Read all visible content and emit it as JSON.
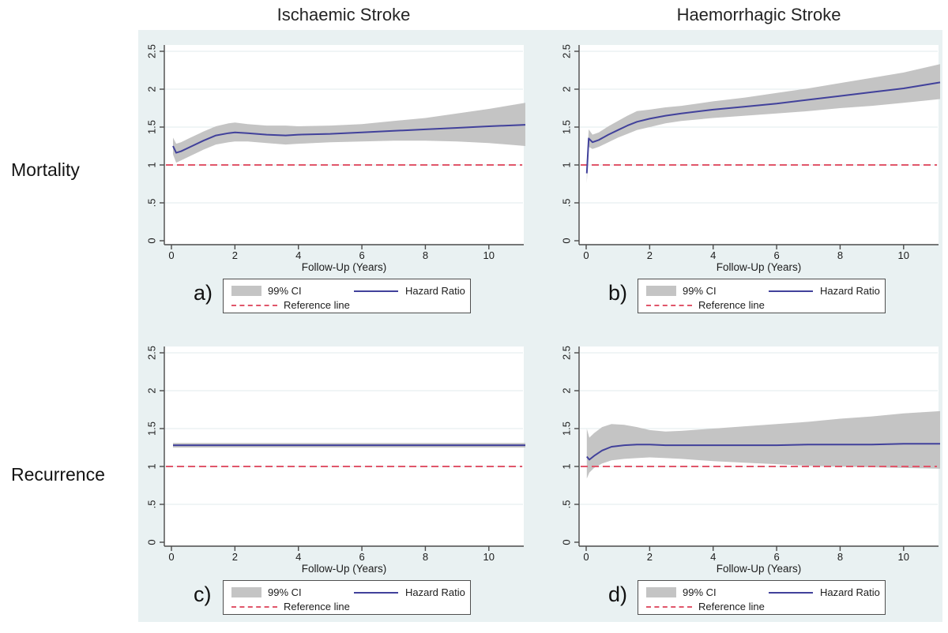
{
  "titles": {
    "column_left": "Ischaemic Stroke",
    "column_right": "Haemorrhagic Stroke",
    "row_top": "Mortality",
    "row_bottom": "Recurrence"
  },
  "legend": {
    "ci_label": "99% CI",
    "hr_label": "Hazard Ratio",
    "ref_label": "Reference line"
  },
  "colors": {
    "background": "#e9f1f2",
    "plot_bg": "#ffffff",
    "grid": "#e2ebec",
    "axis": "#4a4a4a",
    "ci_band": "#c4c4c4",
    "hazard_line": "#41419b",
    "reference_line": "#e0566a",
    "text": "#1c1c1c"
  },
  "chart_data": [
    {
      "id": "a",
      "letter": "a)",
      "type": "line",
      "row": "Mortality",
      "column": "Ischaemic Stroke",
      "xlabel": "Follow-Up (Years)",
      "xticks": [
        0,
        2,
        4,
        6,
        8,
        10
      ],
      "xtick_labels": [
        "0",
        "2",
        "4",
        "6",
        "8",
        "10"
      ],
      "yticks": [
        0,
        0.5,
        1,
        1.5,
        2,
        2.5
      ],
      "ytick_labels": [
        "0",
        ".5",
        "1",
        "1.5",
        "2",
        "2.5"
      ],
      "xlim": [
        0,
        11.15
      ],
      "ylim": [
        0,
        2.58
      ],
      "reference_y": 1,
      "x": [
        0.05,
        0.15,
        0.3,
        0.6,
        1.0,
        1.4,
        1.8,
        2.0,
        2.4,
        3.0,
        3.6,
        4.0,
        5.0,
        6.0,
        7.0,
        8.0,
        9.0,
        10.0,
        11.15
      ],
      "hazard_ratio": [
        1.25,
        1.16,
        1.18,
        1.24,
        1.32,
        1.39,
        1.42,
        1.43,
        1.42,
        1.4,
        1.39,
        1.4,
        1.41,
        1.43,
        1.45,
        1.47,
        1.49,
        1.51,
        1.53
      ],
      "ci_upper": [
        1.36,
        1.28,
        1.3,
        1.36,
        1.44,
        1.51,
        1.55,
        1.56,
        1.54,
        1.52,
        1.52,
        1.51,
        1.52,
        1.54,
        1.58,
        1.62,
        1.68,
        1.74,
        1.82
      ],
      "ci_lower": [
        1.14,
        1.03,
        1.06,
        1.12,
        1.2,
        1.27,
        1.3,
        1.31,
        1.31,
        1.29,
        1.27,
        1.28,
        1.3,
        1.31,
        1.32,
        1.32,
        1.31,
        1.29,
        1.25
      ]
    },
    {
      "id": "b",
      "letter": "b)",
      "type": "line",
      "row": "Mortality",
      "column": "Haemorrhagic Stroke",
      "xlabel": "Follow-Up (Years)",
      "xticks": [
        0,
        2,
        4,
        6,
        8,
        10
      ],
      "xtick_labels": [
        "0",
        "2",
        "4",
        "6",
        "8",
        "10"
      ],
      "yticks": [
        0,
        0.5,
        1,
        1.5,
        2,
        2.5
      ],
      "ytick_labels": [
        "0",
        ".5",
        "1",
        "1.5",
        "2",
        "2.5"
      ],
      "xlim": [
        0,
        11.15
      ],
      "ylim": [
        0,
        2.58
      ],
      "reference_y": 1,
      "x": [
        0.02,
        0.08,
        0.2,
        0.4,
        0.7,
        1.0,
        1.3,
        1.6,
        2.0,
        2.5,
        3.0,
        4.0,
        5.0,
        6.0,
        7.0,
        8.0,
        9.0,
        10.0,
        11.15
      ],
      "hazard_ratio": [
        0.89,
        1.35,
        1.3,
        1.33,
        1.4,
        1.46,
        1.52,
        1.57,
        1.61,
        1.65,
        1.68,
        1.73,
        1.77,
        1.81,
        1.86,
        1.91,
        1.96,
        2.01,
        2.09
      ],
      "ci_upper": [
        1.05,
        1.47,
        1.4,
        1.43,
        1.51,
        1.58,
        1.65,
        1.71,
        1.73,
        1.76,
        1.78,
        1.84,
        1.89,
        1.95,
        2.01,
        2.08,
        2.15,
        2.22,
        2.33
      ],
      "ci_lower": [
        0.76,
        1.24,
        1.21,
        1.24,
        1.3,
        1.36,
        1.41,
        1.46,
        1.5,
        1.55,
        1.58,
        1.62,
        1.65,
        1.68,
        1.71,
        1.75,
        1.78,
        1.82,
        1.87
      ]
    },
    {
      "id": "c",
      "letter": "c)",
      "type": "line",
      "row": "Recurrence",
      "column": "Ischaemic Stroke",
      "xlabel": "Follow-Up (Years)",
      "xticks": [
        0,
        2,
        4,
        6,
        8,
        10
      ],
      "xtick_labels": [
        "0",
        "2",
        "4",
        "6",
        "8",
        "10"
      ],
      "yticks": [
        0,
        0.5,
        1,
        1.5,
        2,
        2.5
      ],
      "ytick_labels": [
        "0",
        ".5",
        "1",
        "1.5",
        "2",
        "2.5"
      ],
      "xlim": [
        0,
        11.15
      ],
      "ylim": [
        0,
        2.58
      ],
      "reference_y": 1,
      "x": [
        0.05,
        2,
        4,
        6,
        8,
        10,
        11.15
      ],
      "hazard_ratio": [
        1.28,
        1.28,
        1.28,
        1.28,
        1.28,
        1.28,
        1.28
      ],
      "ci_upper": [
        1.31,
        1.31,
        1.31,
        1.31,
        1.31,
        1.31,
        1.31
      ],
      "ci_lower": [
        1.25,
        1.25,
        1.25,
        1.25,
        1.25,
        1.25,
        1.25
      ]
    },
    {
      "id": "d",
      "letter": "d)",
      "type": "line",
      "row": "Recurrence",
      "column": "Haemorrhagic Stroke",
      "xlabel": "Follow-Up (Years)",
      "xticks": [
        0,
        2,
        4,
        6,
        8,
        10
      ],
      "xtick_labels": [
        "0",
        "2",
        "4",
        "6",
        "8",
        "10"
      ],
      "yticks": [
        0,
        0.5,
        1,
        1.5,
        2,
        2.5
      ],
      "ytick_labels": [
        "0",
        ".5",
        "1",
        "1.5",
        "2",
        "2.5"
      ],
      "xlim": [
        0,
        11.15
      ],
      "ylim": [
        0,
        2.58
      ],
      "reference_y": 1,
      "x": [
        0.02,
        0.1,
        0.25,
        0.5,
        0.8,
        1.2,
        1.6,
        2.0,
        2.5,
        3.0,
        4.0,
        5.0,
        6.0,
        7.0,
        8.0,
        9.0,
        10.0,
        11.15
      ],
      "hazard_ratio": [
        1.13,
        1.09,
        1.14,
        1.21,
        1.26,
        1.28,
        1.29,
        1.29,
        1.28,
        1.28,
        1.28,
        1.28,
        1.28,
        1.29,
        1.29,
        1.29,
        1.3,
        1.3
      ],
      "ci_upper": [
        1.5,
        1.38,
        1.44,
        1.52,
        1.56,
        1.55,
        1.52,
        1.48,
        1.46,
        1.47,
        1.5,
        1.53,
        1.56,
        1.59,
        1.63,
        1.66,
        1.7,
        1.73
      ],
      "ci_lower": [
        0.84,
        0.92,
        0.98,
        1.04,
        1.08,
        1.1,
        1.11,
        1.12,
        1.11,
        1.1,
        1.07,
        1.05,
        1.03,
        1.01,
        1.0,
        0.99,
        0.98,
        0.97
      ]
    }
  ]
}
